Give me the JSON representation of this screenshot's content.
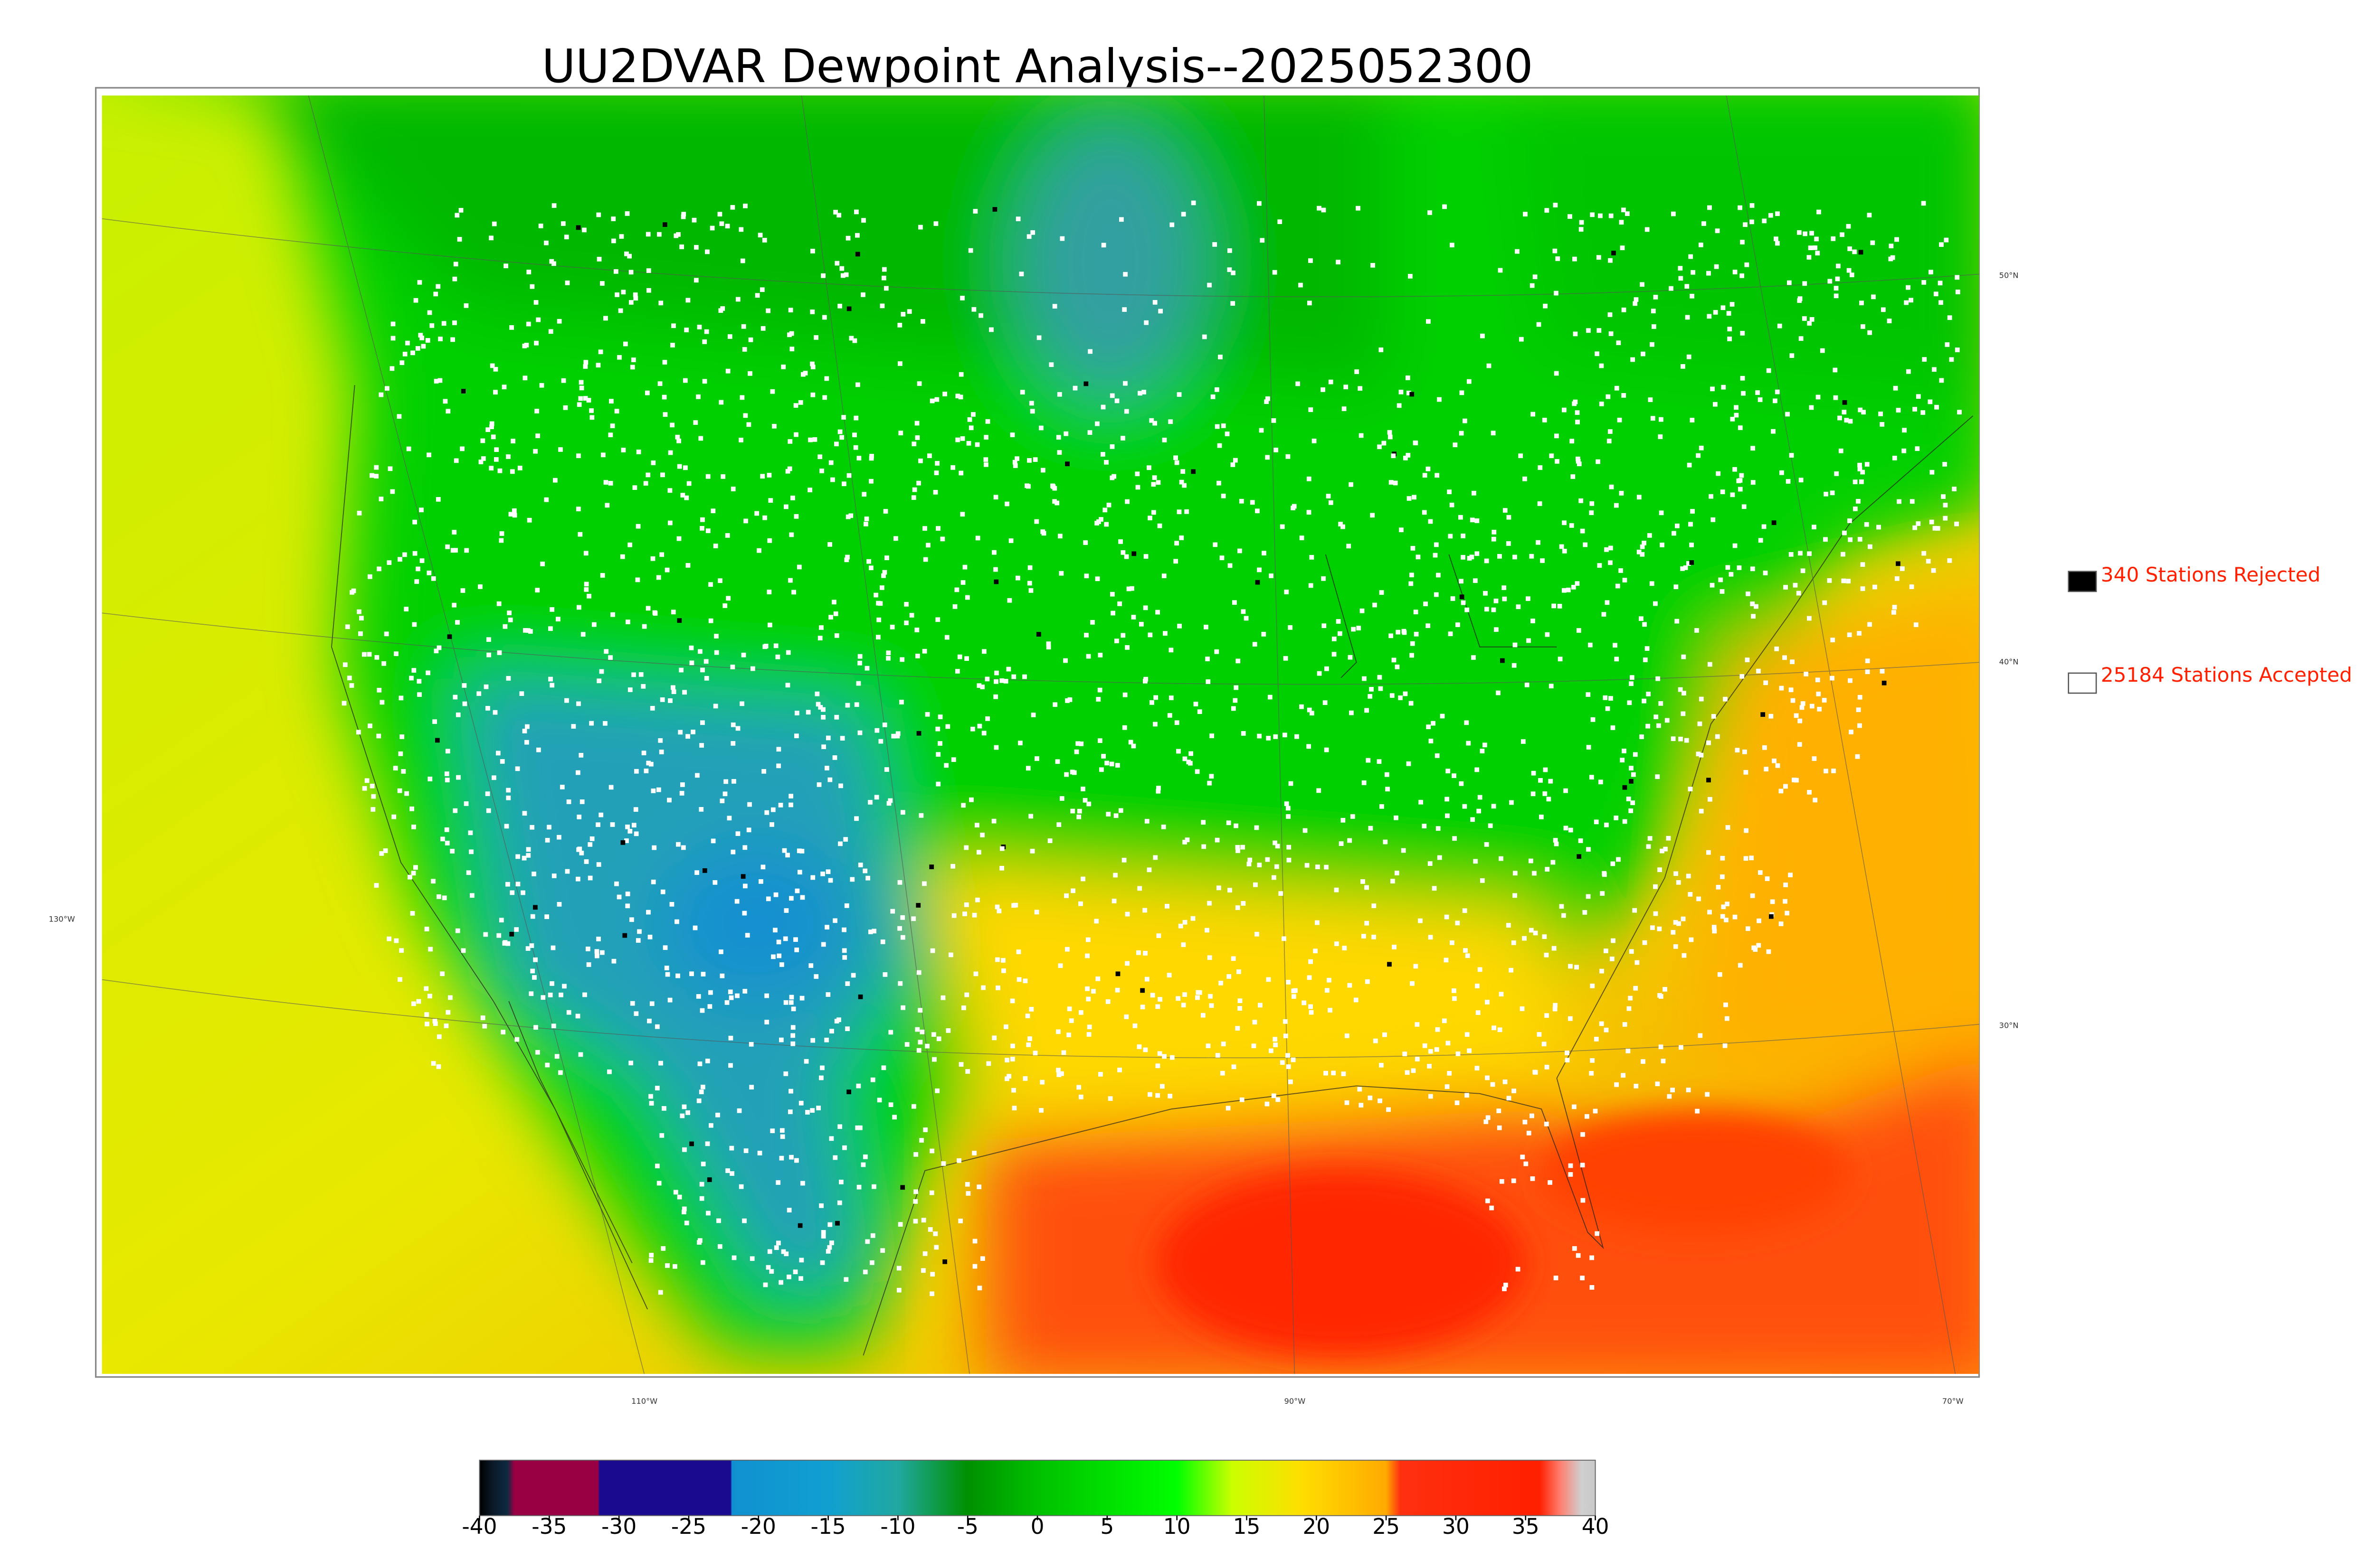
{
  "title": "UU2DVAR Dewpoint Analysis--2025052300",
  "legend": [
    {
      "label": "340 Stations Rejected",
      "color": "#000000"
    },
    {
      "label": "25184 Stations Accepted",
      "color": "#ffffff"
    }
  ],
  "lat_labels": [
    "50°N",
    "40°N",
    "30°N"
  ],
  "lon_labels": [
    "130°W",
    "110°W",
    "90°W",
    "70°W"
  ],
  "colorbar": {
    "range": [
      -40,
      40
    ],
    "ticks": [
      -40,
      -35,
      -30,
      -25,
      -20,
      -15,
      -10,
      -5,
      0,
      5,
      10,
      15,
      20,
      25,
      30,
      35,
      40
    ],
    "stops": [
      {
        "value": -40,
        "color": "#000000"
      },
      {
        "value": -39,
        "color": "#0a1a2a"
      },
      {
        "value": -38,
        "color": "#0d2a40"
      },
      {
        "value": -37.5,
        "color": "#990044"
      },
      {
        "value": -31.5,
        "color": "#990044"
      },
      {
        "value": -31.4,
        "color": "#1a0a90"
      },
      {
        "value": -22,
        "color": "#1a0a90"
      },
      {
        "value": -21.9,
        "color": "#1090d0"
      },
      {
        "value": -15,
        "color": "#10a0d0"
      },
      {
        "value": -10,
        "color": "#20a8a0"
      },
      {
        "value": -5,
        "color": "#009000"
      },
      {
        "value": 0,
        "color": "#00c000"
      },
      {
        "value": 10,
        "color": "#00ff00"
      },
      {
        "value": 14,
        "color": "#ccff00"
      },
      {
        "value": 19,
        "color": "#ffdd00"
      },
      {
        "value": 25,
        "color": "#ffaa00"
      },
      {
        "value": 26,
        "color": "#ff3010"
      },
      {
        "value": 35,
        "color": "#ff2000"
      },
      {
        "value": 36,
        "color": "#ff2000"
      },
      {
        "value": 37.5,
        "color": "#ff8070"
      },
      {
        "value": 39,
        "color": "#d0d0d0"
      },
      {
        "value": 40,
        "color": "#c8c8c8"
      }
    ]
  }
}
